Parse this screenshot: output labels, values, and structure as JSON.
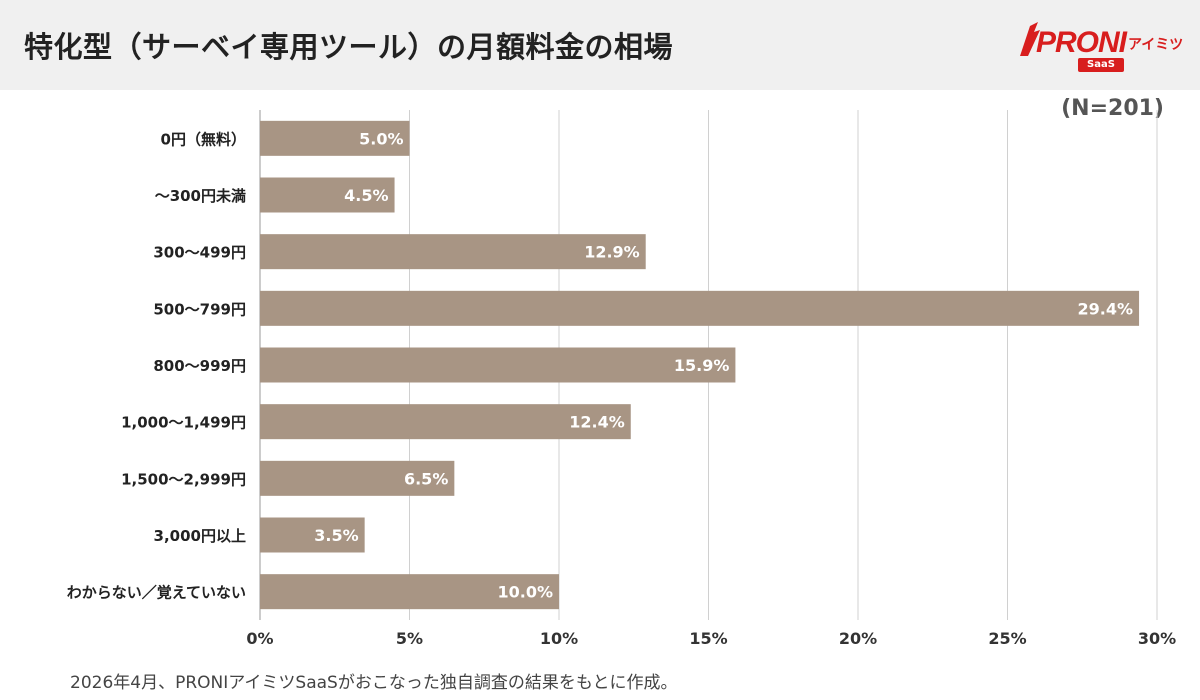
{
  "header": {
    "title": "特化型（サーベイ専用ツール）の月額料金の相場",
    "logo_text": "PRONI",
    "logo_sub": "アイミツ",
    "logo_badge": "SaaS"
  },
  "sample_size": "(N=201)",
  "footnote": "2026年4月、PRONIアイミツSaaSがおこなった独自調査の結果をもとに作成。",
  "colors": {
    "bar": "#a89584",
    "grid": "#d0d0d0",
    "header_bg": "#f0f0f0",
    "brand": "#d81e1e"
  },
  "chart_data": {
    "type": "bar",
    "orientation": "horizontal",
    "categories": [
      "0円（無料）",
      "～300円未満",
      "300～499円",
      "500～799円",
      "800～999円",
      "1,000～1,499円",
      "1,500～2,999円",
      "3,000円以上",
      "わからない／覚えていない"
    ],
    "values": [
      5.0,
      4.5,
      12.9,
      29.4,
      15.9,
      12.4,
      6.5,
      3.5,
      10.0
    ],
    "value_labels": [
      "5.0%",
      "4.5%",
      "12.9%",
      "29.4%",
      "15.9%",
      "12.4%",
      "6.5%",
      "3.5%",
      "10.0%"
    ],
    "xlim": [
      0,
      30
    ],
    "x_ticks": [
      0,
      5,
      10,
      15,
      20,
      25,
      30
    ],
    "x_tick_labels": [
      "0%",
      "5%",
      "10%",
      "15%",
      "20%",
      "25%",
      "30%"
    ],
    "grid": true
  }
}
